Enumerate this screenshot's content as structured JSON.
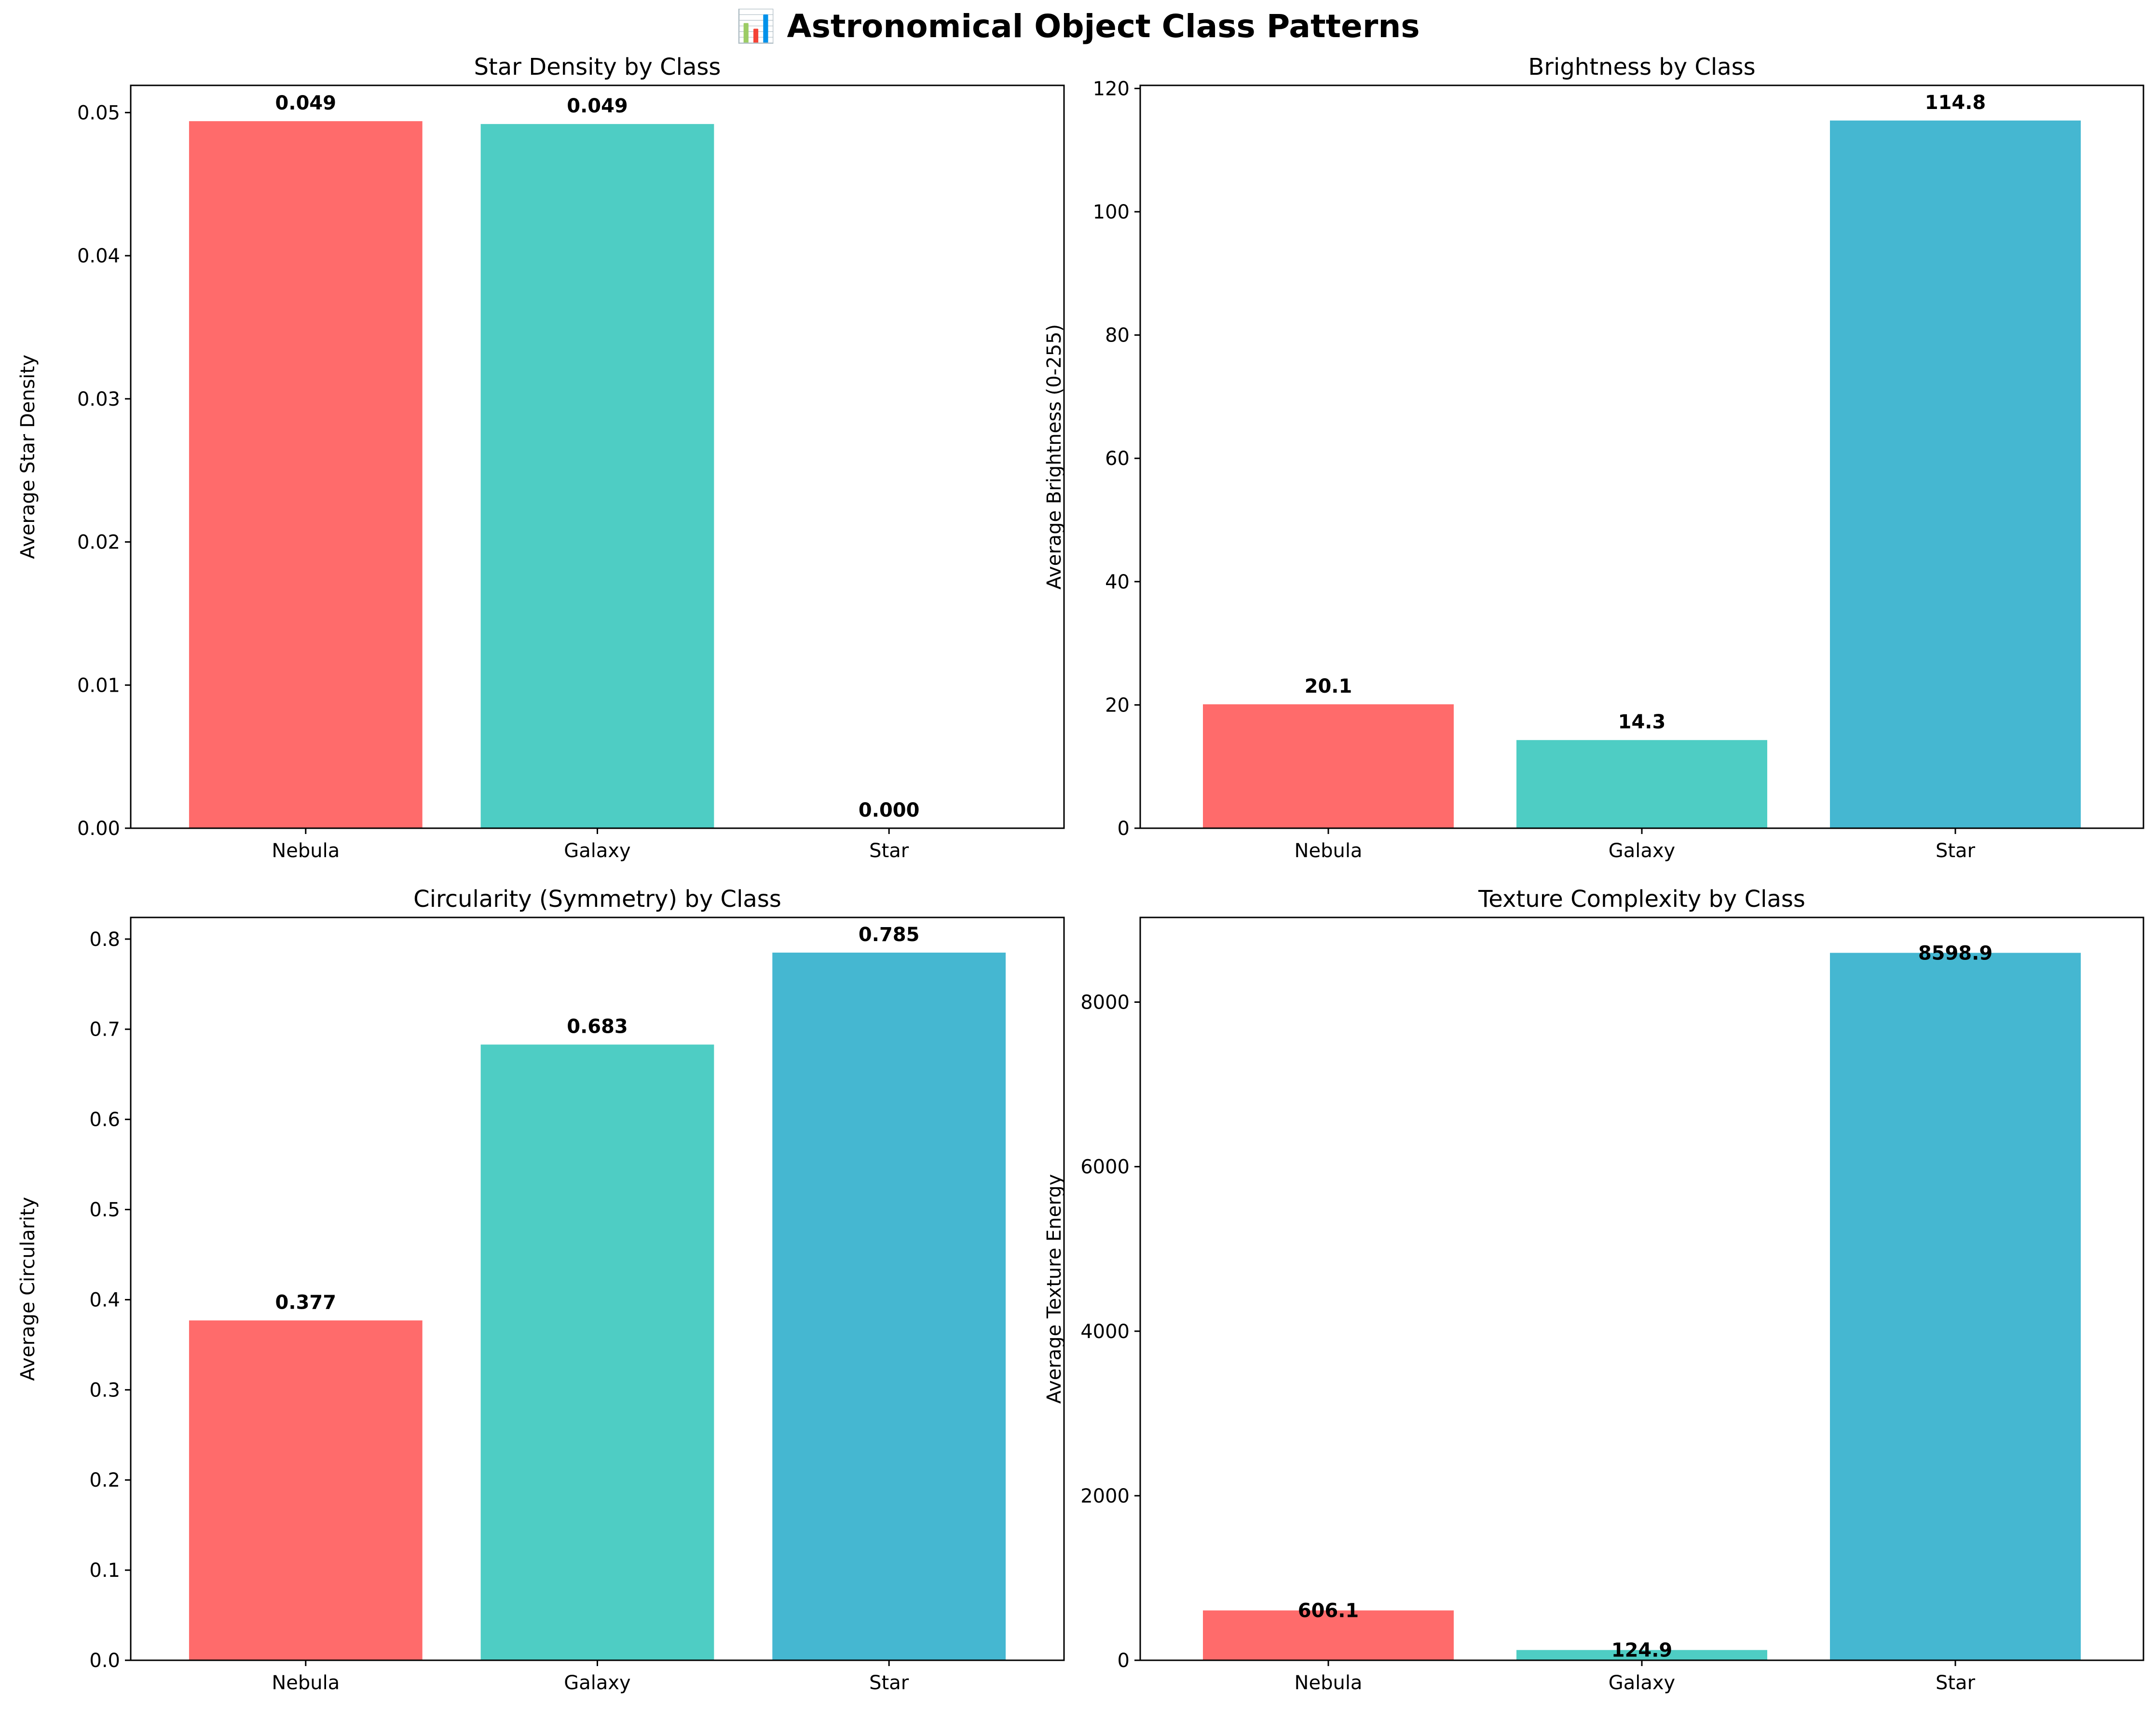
{
  "figure": {
    "title": "📊 Astronomical Object Class Patterns"
  },
  "chart_data": [
    {
      "type": "bar",
      "title": "Star Density by Class",
      "xlabel": "",
      "ylabel": "Average Star Density",
      "categories": [
        "Nebula",
        "Galaxy",
        "Star"
      ],
      "values": [
        0.0494,
        0.0492,
        0.0
      ],
      "data_labels": [
        "0.049",
        "0.049",
        "0.000"
      ],
      "colors": [
        "#FF6B6B",
        "#4ECDC4",
        "#45B7D1"
      ],
      "ylim": [
        0,
        0.0519
      ],
      "yticks": [
        0,
        0.01,
        0.02,
        0.03,
        0.04,
        0.05
      ],
      "ytick_labels": [
        "0.00",
        "0.01",
        "0.02",
        "0.03",
        "0.04",
        "0.05"
      ],
      "grid": false,
      "legend": "none"
    },
    {
      "type": "bar",
      "title": "Brightness by Class",
      "xlabel": "",
      "ylabel": "Average Brightness (0-255)",
      "categories": [
        "Nebula",
        "Galaxy",
        "Star"
      ],
      "values": [
        20.1,
        14.3,
        114.8
      ],
      "data_labels": [
        "20.1",
        "14.3",
        "114.8"
      ],
      "colors": [
        "#FF6B6B",
        "#4ECDC4",
        "#45B7D1"
      ],
      "ylim": [
        0,
        120.5
      ],
      "yticks": [
        0,
        20,
        40,
        60,
        80,
        100,
        120
      ],
      "ytick_labels": [
        "0",
        "20",
        "40",
        "60",
        "80",
        "100",
        "120"
      ],
      "grid": false,
      "legend": "none"
    },
    {
      "type": "bar",
      "title": "Circularity (Symmetry) by Class",
      "xlabel": "",
      "ylabel": "Average Circularity",
      "categories": [
        "Nebula",
        "Galaxy",
        "Star"
      ],
      "values": [
        0.377,
        0.683,
        0.785
      ],
      "data_labels": [
        "0.377",
        "0.683",
        "0.785"
      ],
      "colors": [
        "#FF6B6B",
        "#4ECDC4",
        "#45B7D1"
      ],
      "ylim": [
        0,
        0.824
      ],
      "yticks": [
        0,
        0.1,
        0.2,
        0.3,
        0.4,
        0.5,
        0.6,
        0.7,
        0.8
      ],
      "ytick_labels": [
        "0.0",
        "0.1",
        "0.2",
        "0.3",
        "0.4",
        "0.5",
        "0.6",
        "0.7",
        "0.8"
      ],
      "grid": false,
      "legend": "none"
    },
    {
      "type": "bar",
      "title": "Texture Complexity by Class",
      "xlabel": "",
      "ylabel": "Average Texture Energy",
      "categories": [
        "Nebula",
        "Galaxy",
        "Star"
      ],
      "values": [
        606.1,
        124.9,
        8598.9
      ],
      "data_labels": [
        "606.1",
        "124.9",
        "8598.9"
      ],
      "colors": [
        "#FF6B6B",
        "#4ECDC4",
        "#45B7D1"
      ],
      "ylim": [
        0,
        9029
      ],
      "yticks": [
        0,
        2000,
        4000,
        6000,
        8000
      ],
      "ytick_labels": [
        "0",
        "2000",
        "4000",
        "6000",
        "8000"
      ],
      "grid": false,
      "legend": "none"
    }
  ]
}
